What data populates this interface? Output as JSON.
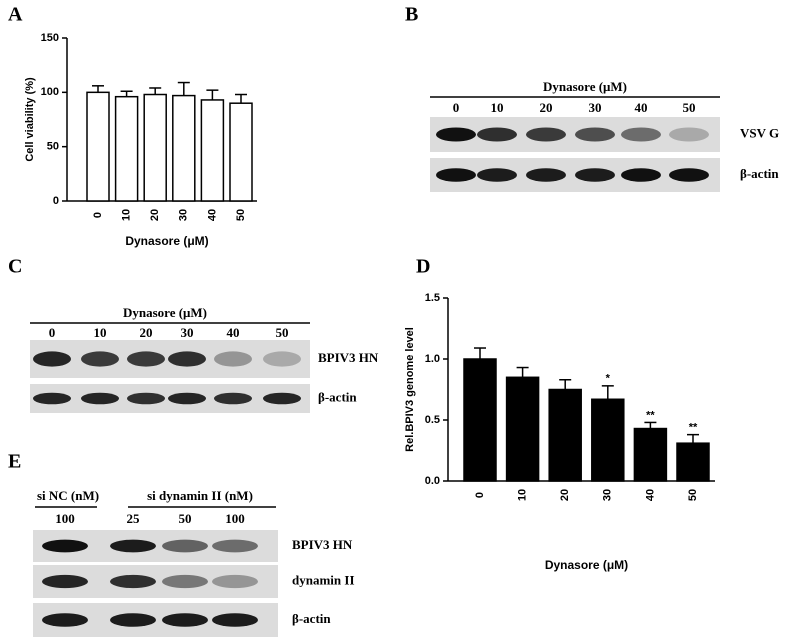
{
  "chart_data": [
    {
      "type": "bar",
      "panel": "A",
      "ylabel": "Cell viability (%)",
      "xlabel": "Dynasore (μM)",
      "categories": [
        "0",
        "10",
        "20",
        "30",
        "40",
        "50"
      ],
      "values": [
        100,
        96,
        98,
        97,
        93,
        90
      ],
      "errors": [
        6,
        5,
        6,
        12,
        9,
        8
      ],
      "color": "#ffffff",
      "ylim": [
        0,
        150
      ],
      "yticks": [
        0,
        50,
        100,
        150
      ]
    },
    {
      "type": "bar",
      "panel": "D",
      "ylabel": "Rel.BPIV3 genome level",
      "xlabel": "Dynasore (μM)",
      "categories": [
        "0",
        "10",
        "20",
        "30",
        "40",
        "50"
      ],
      "values": [
        1.0,
        0.85,
        0.75,
        0.67,
        0.43,
        0.31
      ],
      "errors": [
        0.09,
        0.08,
        0.08,
        0.11,
        0.05,
        0.07
      ],
      "significance": [
        null,
        null,
        null,
        "*",
        "**",
        "**"
      ],
      "color": "#000000",
      "ylim": [
        0,
        1.5
      ],
      "yticks": [
        {
          "value": 0,
          "label": "0.0"
        },
        0.5,
        {
          "value": 1,
          "label": "1.0"
        },
        1.5
      ]
    }
  ],
  "blots": [
    {
      "panel": "B",
      "header": "Dynasore (μM)",
      "lanes": [
        "0",
        "10",
        "20",
        "30",
        "40",
        "50"
      ],
      "rows": [
        "VSV  G",
        "β-actin"
      ]
    },
    {
      "panel": "C",
      "header": "Dynasore (μM)",
      "lanes": [
        "0",
        "10",
        "20",
        "30",
        "40",
        "50"
      ],
      "rows": [
        "BPIV3  HN",
        "β-actin"
      ]
    },
    {
      "panel": "E",
      "groups": [
        "si NC (nM)",
        "si dynamin II  (nM)"
      ],
      "lanes": [
        "100",
        "25",
        "50",
        "100"
      ],
      "rows": [
        "BPIV3  HN",
        "dynamin II",
        "β-actin"
      ]
    }
  ]
}
